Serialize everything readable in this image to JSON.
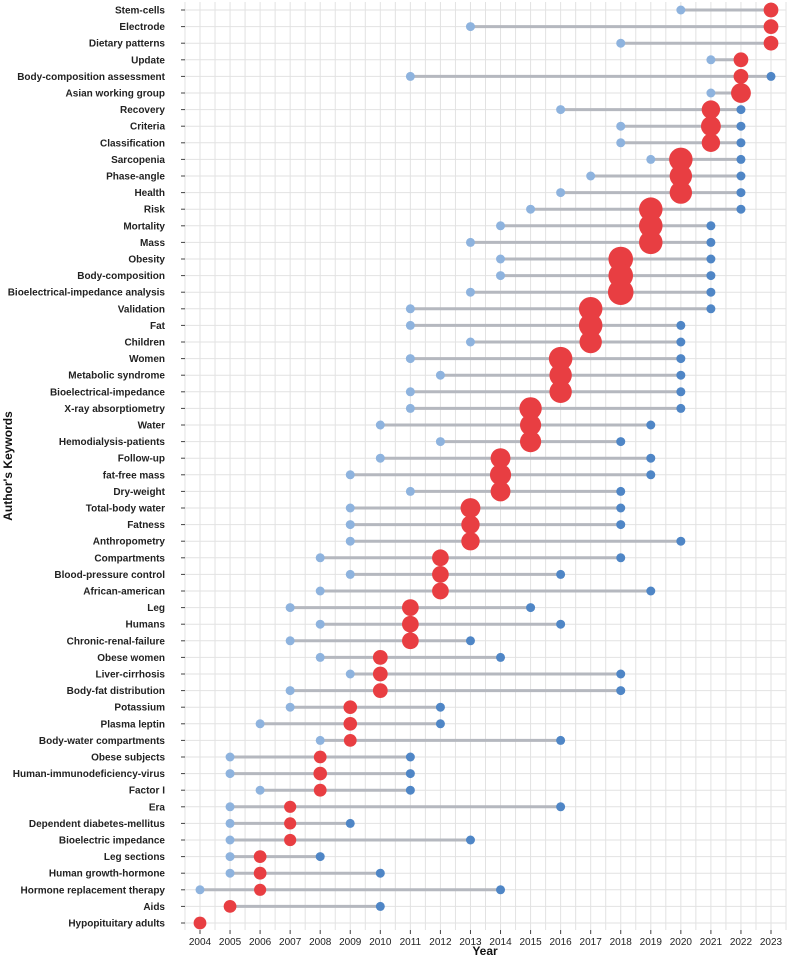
{
  "chart_data": {
    "type": "dumbbell",
    "xlabel": "Year",
    "ylabel": "Author's Keywords",
    "xlim": [
      2004,
      2023
    ],
    "grid": true,
    "colors": {
      "first_year": "#8eb3de",
      "last_year": "#4f86c6",
      "peak_year": "#e83e42",
      "segment": "#b5b8bf",
      "grid": "#e2e2e2"
    },
    "x_ticks": [
      "2004",
      "2005",
      "2006",
      "2007",
      "2008",
      "2009",
      "2010",
      "2011",
      "2012",
      "2013",
      "2014",
      "2015",
      "2016",
      "2017",
      "2018",
      "2019",
      "2020",
      "2021",
      "2022",
      "2023"
    ],
    "keywords": [
      {
        "label": "Stem-cells",
        "start": 2020,
        "end": 2023,
        "peak": 2023,
        "freq": 2
      },
      {
        "label": "Electrode",
        "start": 2013,
        "end": 2023,
        "peak": 2023,
        "freq": 2
      },
      {
        "label": "Dietary patterns",
        "start": 2018,
        "end": 2023,
        "peak": 2023,
        "freq": 2
      },
      {
        "label": "Update",
        "start": 2021,
        "end": 2022,
        "peak": 2022,
        "freq": 2
      },
      {
        "label": "Body-composition assessment",
        "start": 2011,
        "end": 2023,
        "peak": 2022,
        "freq": 2
      },
      {
        "label": "Asian working group",
        "start": 2021,
        "end": 2022,
        "peak": 2022,
        "freq": 5
      },
      {
        "label": "Recovery",
        "start": 2016,
        "end": 2022,
        "peak": 2021,
        "freq": 4
      },
      {
        "label": "Criteria",
        "start": 2018,
        "end": 2022,
        "peak": 2021,
        "freq": 5
      },
      {
        "label": "Classification",
        "start": 2018,
        "end": 2022,
        "peak": 2021,
        "freq": 4
      },
      {
        "label": "Sarcopenia",
        "start": 2019,
        "end": 2022,
        "peak": 2020,
        "freq": 8
      },
      {
        "label": "Phase-angle",
        "start": 2017,
        "end": 2022,
        "peak": 2020,
        "freq": 7
      },
      {
        "label": "Health",
        "start": 2016,
        "end": 2022,
        "peak": 2020,
        "freq": 7
      },
      {
        "label": "Risk",
        "start": 2015,
        "end": 2022,
        "peak": 2019,
        "freq": 8
      },
      {
        "label": "Mortality",
        "start": 2014,
        "end": 2021,
        "peak": 2019,
        "freq": 8
      },
      {
        "label": "Mass",
        "start": 2013,
        "end": 2021,
        "peak": 2019,
        "freq": 8
      },
      {
        "label": "Obesity",
        "start": 2014,
        "end": 2021,
        "peak": 2018,
        "freq": 9
      },
      {
        "label": "Body-composition",
        "start": 2014,
        "end": 2021,
        "peak": 2018,
        "freq": 9
      },
      {
        "label": "Bioelectrical-impedance analysis",
        "start": 2013,
        "end": 2021,
        "peak": 2018,
        "freq": 10
      },
      {
        "label": "Validation",
        "start": 2011,
        "end": 2021,
        "peak": 2017,
        "freq": 8
      },
      {
        "label": "Fat",
        "start": 2011,
        "end": 2020,
        "peak": 2017,
        "freq": 8
      },
      {
        "label": "Children",
        "start": 2013,
        "end": 2020,
        "peak": 2017,
        "freq": 7
      },
      {
        "label": "Women",
        "start": 2011,
        "end": 2020,
        "peak": 2016,
        "freq": 8
      },
      {
        "label": "Metabolic syndrome",
        "start": 2012,
        "end": 2020,
        "peak": 2016,
        "freq": 7
      },
      {
        "label": "Bioelectrical-impedance",
        "start": 2011,
        "end": 2020,
        "peak": 2016,
        "freq": 7
      },
      {
        "label": "X-ray absorptiometry",
        "start": 2011,
        "end": 2020,
        "peak": 2015,
        "freq": 7
      },
      {
        "label": "Water",
        "start": 2010,
        "end": 2019,
        "peak": 2015,
        "freq": 6
      },
      {
        "label": "Hemodialysis-patients",
        "start": 2012,
        "end": 2018,
        "peak": 2015,
        "freq": 6
      },
      {
        "label": "Follow-up",
        "start": 2010,
        "end": 2019,
        "peak": 2014,
        "freq": 5
      },
      {
        "label": "fat-free mass",
        "start": 2009,
        "end": 2019,
        "peak": 2014,
        "freq": 6
      },
      {
        "label": "Dry-weight",
        "start": 2011,
        "end": 2018,
        "peak": 2014,
        "freq": 5
      },
      {
        "label": "Total-body water",
        "start": 2009,
        "end": 2018,
        "peak": 2013,
        "freq": 5
      },
      {
        "label": "Fatness",
        "start": 2009,
        "end": 2018,
        "peak": 2013,
        "freq": 4
      },
      {
        "label": "Anthropometry",
        "start": 2009,
        "end": 2020,
        "peak": 2013,
        "freq": 4
      },
      {
        "label": "Compartments",
        "start": 2008,
        "end": 2018,
        "peak": 2012,
        "freq": 3
      },
      {
        "label": "Blood-pressure control",
        "start": 2009,
        "end": 2016,
        "peak": 2012,
        "freq": 3
      },
      {
        "label": "African-american",
        "start": 2008,
        "end": 2019,
        "peak": 2012,
        "freq": 3
      },
      {
        "label": "Leg",
        "start": 2007,
        "end": 2015,
        "peak": 2011,
        "freq": 3
      },
      {
        "label": "Humans",
        "start": 2008,
        "end": 2016,
        "peak": 2011,
        "freq": 3
      },
      {
        "label": "Chronic-renal-failure",
        "start": 2007,
        "end": 2013,
        "peak": 2011,
        "freq": 3
      },
      {
        "label": "Obese women",
        "start": 2008,
        "end": 2014,
        "peak": 2010,
        "freq": 2
      },
      {
        "label": "Liver-cirrhosis",
        "start": 2009,
        "end": 2018,
        "peak": 2010,
        "freq": 2
      },
      {
        "label": "Body-fat distribution",
        "start": 2007,
        "end": 2018,
        "peak": 2010,
        "freq": 2
      },
      {
        "label": "Potassium",
        "start": 2007,
        "end": 2012,
        "peak": 2009,
        "freq": 1.5
      },
      {
        "label": "Plasma leptin",
        "start": 2006,
        "end": 2012,
        "peak": 2009,
        "freq": 1.5
      },
      {
        "label": "Body-water compartments",
        "start": 2008,
        "end": 2016,
        "peak": 2009,
        "freq": 1.2
      },
      {
        "label": "Obese subjects",
        "start": 2005,
        "end": 2011,
        "peak": 2008,
        "freq": 1.2
      },
      {
        "label": "Human-immunodeficiency-virus",
        "start": 2005,
        "end": 2011,
        "peak": 2008,
        "freq": 1.5
      },
      {
        "label": "Factor I",
        "start": 2006,
        "end": 2011,
        "peak": 2008,
        "freq": 1.2
      },
      {
        "label": "Era",
        "start": 2005,
        "end": 2016,
        "peak": 2007,
        "freq": 1
      },
      {
        "label": "Dependent diabetes-mellitus",
        "start": 2005,
        "end": 2009,
        "peak": 2007,
        "freq": 1
      },
      {
        "label": "Bioelectric impedance",
        "start": 2005,
        "end": 2013,
        "peak": 2007,
        "freq": 1
      },
      {
        "label": "Leg sections",
        "start": 2005,
        "end": 2008,
        "peak": 2006,
        "freq": 1.2
      },
      {
        "label": "Human growth-hormone",
        "start": 2005,
        "end": 2010,
        "peak": 2006,
        "freq": 1.2
      },
      {
        "label": "Hormone replacement therapy",
        "start": 2004,
        "end": 2014,
        "peak": 2006,
        "freq": 1
      },
      {
        "label": "Aids",
        "start": 2005,
        "end": 2010,
        "peak": 2005,
        "freq": 1.2
      },
      {
        "label": "Hypopituitary adults",
        "start": 2004,
        "end": 2004,
        "peak": 2004,
        "freq": 1.2
      }
    ]
  }
}
